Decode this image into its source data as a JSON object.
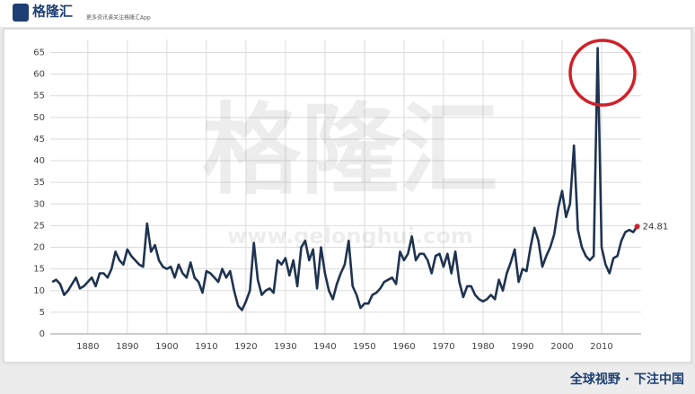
{
  "brand": {
    "logo": "格隆汇",
    "tagline": "更多资讯请关注格隆汇App"
  },
  "watermark": {
    "name": "格隆汇",
    "url": "www.gelonghui.com"
  },
  "footer": "全球视野 · 下注中国",
  "chart_data": {
    "type": "line",
    "color": "#1f3350",
    "end_marker_color": "#d0202a",
    "grid": true,
    "x": [
      1871,
      1872,
      1873,
      1874,
      1875,
      1876,
      1877,
      1878,
      1879,
      1880,
      1881,
      1882,
      1883,
      1884,
      1885,
      1886,
      1887,
      1888,
      1889,
      1890,
      1891,
      1892,
      1893,
      1894,
      1895,
      1896,
      1897,
      1898,
      1899,
      1900,
      1901,
      1902,
      1903,
      1904,
      1905,
      1906,
      1907,
      1908,
      1909,
      1910,
      1911,
      1912,
      1913,
      1914,
      1915,
      1916,
      1917,
      1918,
      1919,
      1920,
      1921,
      1922,
      1923,
      1924,
      1925,
      1926,
      1927,
      1928,
      1929,
      1930,
      1931,
      1932,
      1933,
      1934,
      1935,
      1936,
      1937,
      1938,
      1939,
      1940,
      1941,
      1942,
      1943,
      1944,
      1945,
      1946,
      1947,
      1948,
      1949,
      1950,
      1951,
      1952,
      1953,
      1954,
      1955,
      1956,
      1957,
      1958,
      1959,
      1960,
      1961,
      1962,
      1963,
      1964,
      1965,
      1966,
      1967,
      1968,
      1969,
      1970,
      1971,
      1972,
      1973,
      1974,
      1975,
      1976,
      1977,
      1978,
      1979,
      1980,
      1981,
      1982,
      1983,
      1984,
      1985,
      1986,
      1987,
      1988,
      1989,
      1990,
      1991,
      1992,
      1993,
      1994,
      1995,
      1996,
      1997,
      1998,
      1999,
      2000,
      2001,
      2002,
      2003,
      2004,
      2005,
      2006,
      2007,
      2008,
      2009,
      2010,
      2011,
      2012,
      2013,
      2014,
      2015,
      2016,
      2017,
      2018,
      2019
    ],
    "values": [
      12,
      12.5,
      11.5,
      9,
      10,
      11.5,
      13,
      10.5,
      11,
      12,
      13,
      11,
      14,
      14,
      13,
      15,
      19,
      17,
      16,
      19.5,
      18,
      17,
      16,
      15.5,
      25.5,
      19,
      20.5,
      17,
      15.5,
      15,
      15.5,
      13,
      16,
      14,
      13,
      16.5,
      13,
      12,
      9.5,
      14.5,
      14,
      13,
      12,
      15,
      13,
      14.5,
      10,
      6.5,
      5.5,
      7.5,
      10,
      21,
      12.5,
      9,
      10,
      10.5,
      9.5,
      17,
      16,
      17.5,
      13.5,
      17,
      11,
      20,
      21.5,
      17,
      19.5,
      10.5,
      20,
      14,
      10,
      8,
      11.5,
      14,
      16,
      21.5,
      11,
      9,
      6,
      7,
      7,
      9,
      9.5,
      10.5,
      12,
      12.5,
      13,
      11.5,
      19,
      17,
      18.5,
      22.5,
      17,
      18.5,
      18.5,
      17,
      14,
      18,
      18.5,
      15.5,
      18.5,
      14,
      19,
      12,
      8.5,
      11,
      11,
      9,
      8,
      7.5,
      8,
      9,
      8,
      12.5,
      10,
      14,
      16.5,
      19.5,
      12,
      15,
      14.5,
      20,
      24.5,
      21.5,
      15.5,
      18,
      20,
      23,
      29,
      33,
      27,
      30,
      43.5,
      24,
      20,
      18,
      17,
      18,
      66,
      20,
      16,
      14,
      17.5,
      18,
      21.5,
      23.5,
      24,
      23.5,
      24.81
    ],
    "xlim": [
      1870.5,
      2020
    ],
    "xticks": [
      1880,
      1890,
      1900,
      1910,
      1920,
      1930,
      1940,
      1950,
      1960,
      1970,
      1980,
      1990,
      2000,
      2010
    ],
    "ylim": [
      0,
      68
    ],
    "yticks": [
      0,
      5,
      10,
      15,
      20,
      25,
      30,
      35,
      40,
      45,
      50,
      55,
      60,
      65
    ]
  }
}
